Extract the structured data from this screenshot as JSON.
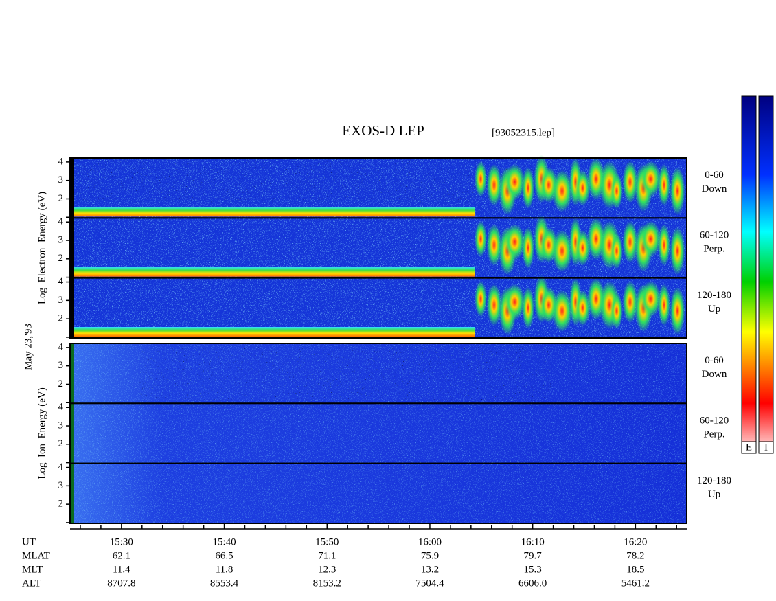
{
  "title": "EXOS-D LEP",
  "file": "[93052315.lep]",
  "date": "May 23,'93",
  "electron": {
    "axis_label": "Log  Electron  Energy (eV)",
    "yticks": [
      2,
      3,
      4
    ],
    "panels": [
      {
        "range": "0-60",
        "direction": "Down"
      },
      {
        "range": "60-120",
        "direction": "Perp."
      },
      {
        "range": "120-180",
        "direction": "Up"
      }
    ]
  },
  "ion": {
    "axis_label": "Log  Ion  Energy (eV)",
    "yticks": [
      2,
      3,
      4
    ],
    "panels": [
      {
        "range": "0-60",
        "direction": "Down"
      },
      {
        "range": "60-120",
        "direction": "Perp."
      },
      {
        "range": "120-180",
        "direction": "Up"
      }
    ]
  },
  "time_axis": {
    "rows": [
      {
        "label": "UT",
        "values": [
          "15:30",
          "15:40",
          "15:50",
          "16:00",
          "16:10",
          "16:20"
        ]
      },
      {
        "label": "MLAT",
        "values": [
          "62.1",
          "66.5",
          "71.1",
          "75.9",
          "79.7",
          "78.2"
        ]
      },
      {
        "label": "MLT",
        "values": [
          "11.4",
          "11.8",
          "12.3",
          "13.2",
          "15.3",
          "18.5"
        ]
      },
      {
        "label": "ALT",
        "values": [
          "8707.8",
          "8553.4",
          "8153.2",
          "7504.4",
          "6606.0",
          "5461.2"
        ]
      }
    ]
  },
  "colorbar": {
    "labels": [
      "E",
      "I"
    ]
  }
}
